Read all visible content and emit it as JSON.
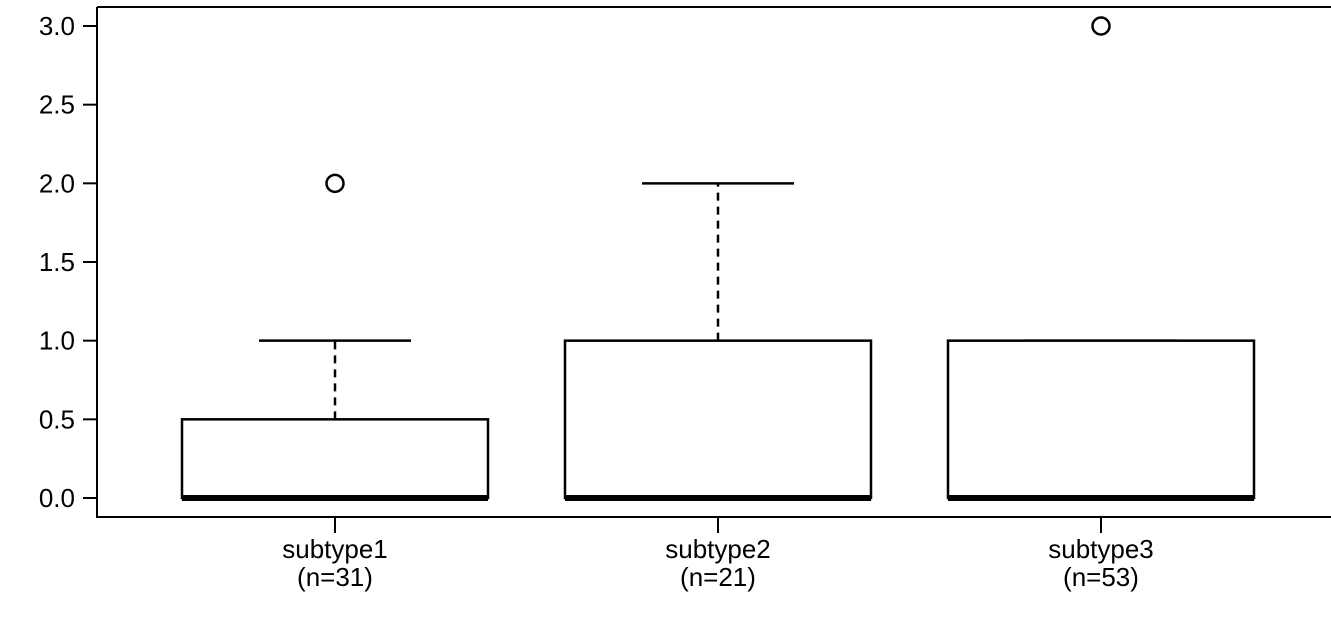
{
  "chart_data": {
    "type": "box",
    "title": "",
    "xlabel": "",
    "ylabel": "",
    "ylim": [
      0,
      3
    ],
    "yticks": [
      "0.0",
      "0.5",
      "1.0",
      "1.5",
      "2.0",
      "2.5",
      "3.0"
    ],
    "ytick_values": [
      0,
      0.5,
      1,
      1.5,
      2,
      2.5,
      3
    ],
    "grid": false,
    "legend": "none",
    "groups": [
      {
        "label": "subtype1",
        "n_label": "(n=31)",
        "min": 0,
        "q1": 0,
        "median": 0,
        "q3": 0.5,
        "max": 1,
        "outliers": [
          2
        ]
      },
      {
        "label": "subtype2",
        "n_label": "(n=21)",
        "min": 0,
        "q1": 0,
        "median": 0,
        "q3": 1,
        "max": 2,
        "outliers": []
      },
      {
        "label": "subtype3",
        "n_label": "(n=53)",
        "min": 0,
        "q1": 0,
        "median": 0,
        "q3": 1,
        "max": 1,
        "outliers": [
          3
        ]
      }
    ]
  }
}
